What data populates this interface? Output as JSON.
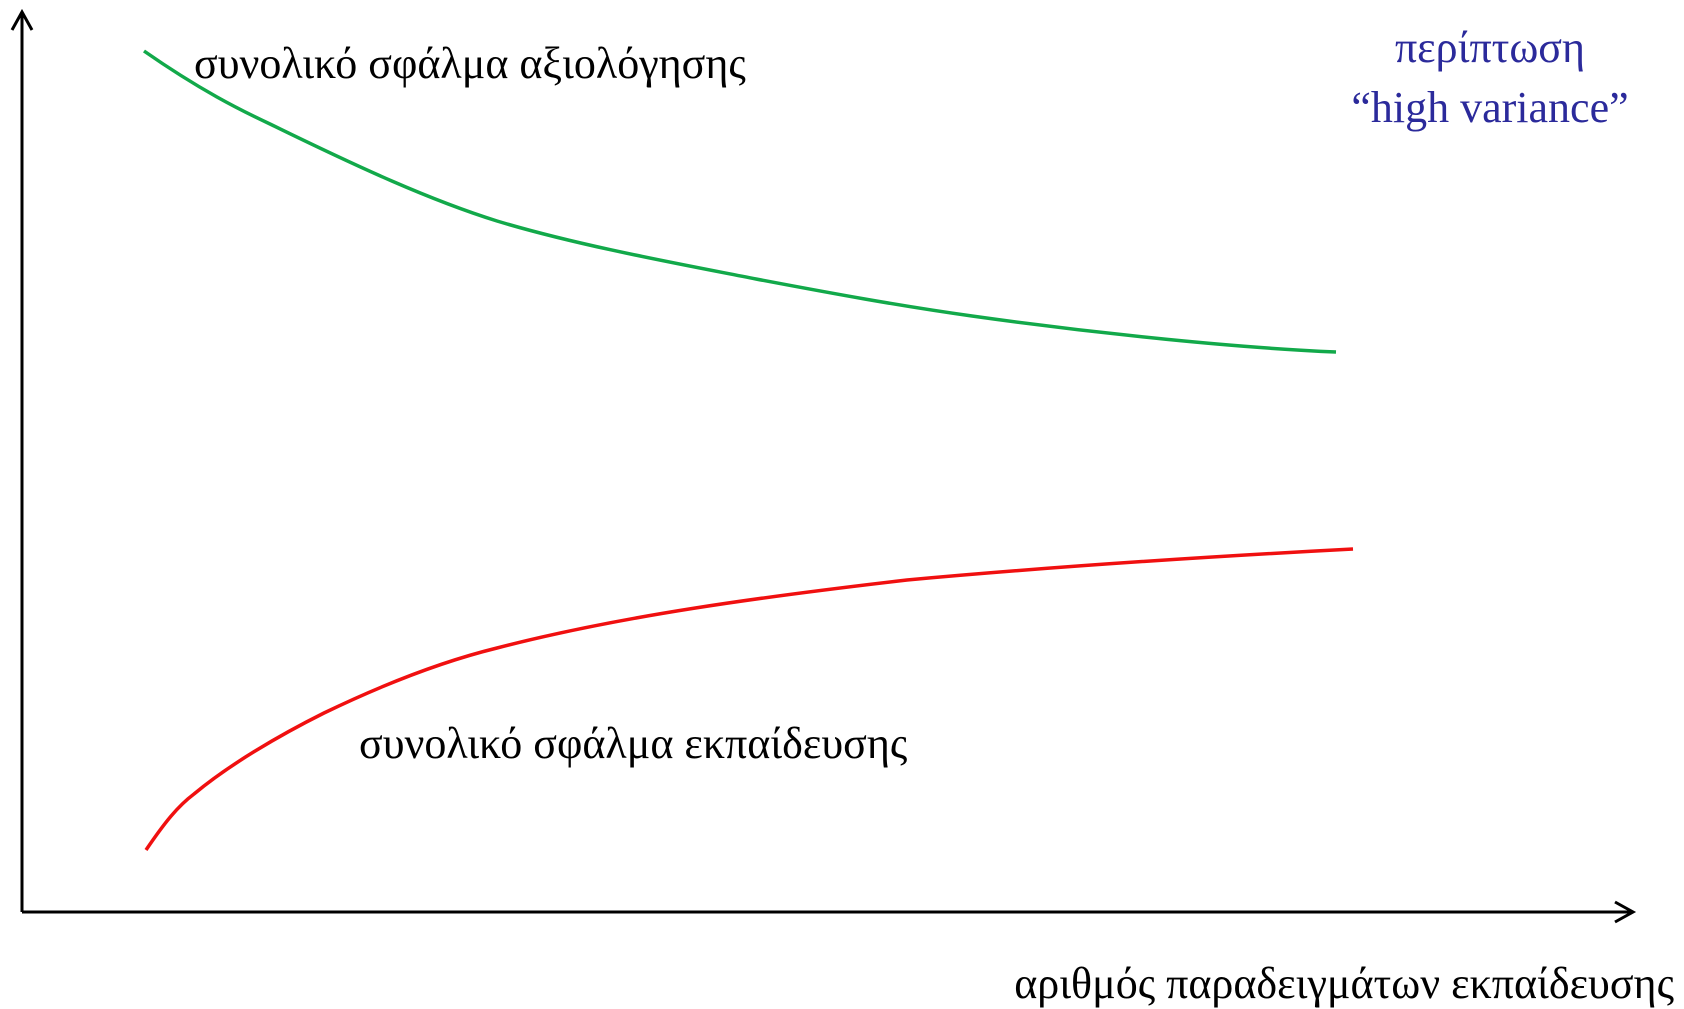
{
  "curves": {
    "validation": {
      "label": "συνολικό σφάλμα αξιολόγησης"
    },
    "training": {
      "label": "συνολικό σφάλμα εκπαίδευσης"
    }
  },
  "case": {
    "line1": "περίπτωση",
    "line2": "“high variance”"
  },
  "x_axis": {
    "label": "αριθμός παραδειγμάτων εκπαίδευσης"
  }
}
